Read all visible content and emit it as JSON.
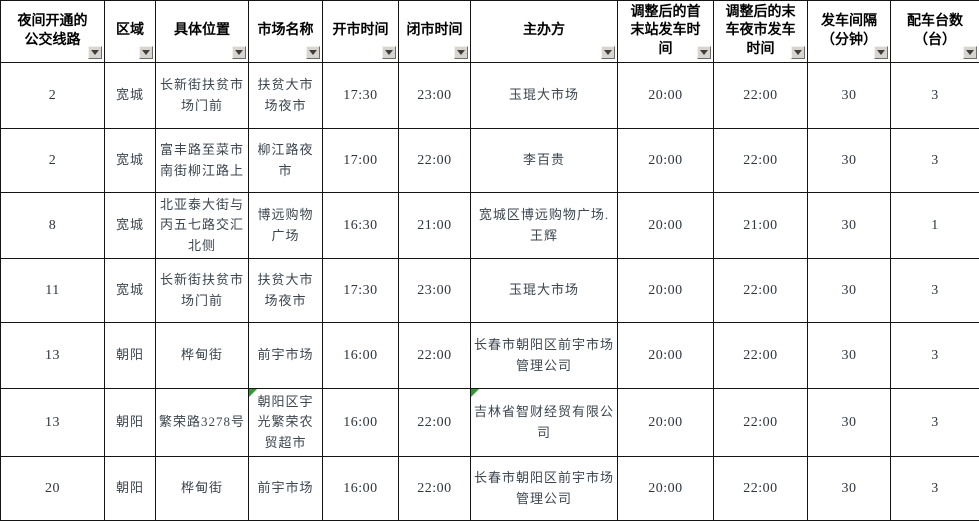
{
  "colors": {
    "grid_line": "#141414",
    "filter_button_bg": "#d8d5ce",
    "comment_flag_green": "#2e9d2e",
    "header_text": "#000000",
    "body_text": "#3c4650"
  },
  "table": {
    "headers": [
      "夜间开通的\n公交线路",
      "区域",
      "具体位置",
      "市场名称",
      "开市时间",
      "闭市时间",
      "主办方",
      "调整后的首\n末站发车时\n间",
      "调整后的末\n车夜市发车\n时间",
      "发车间隔\n（分钟）",
      "配车台数\n（台）"
    ],
    "rows": [
      {
        "cells": [
          "2",
          "宽城",
          "长新街扶贫市场门前",
          "扶贫大市场夜市",
          "17:30",
          "23:00",
          "玉琨大市场",
          "20:00",
          "22:00",
          "30",
          "3"
        ]
      },
      {
        "cells": [
          "2",
          "宽城",
          "富丰路至菜市南街柳江路上",
          "柳江路夜市",
          "17:00",
          "22:00",
          "李百贵",
          "20:00",
          "22:00",
          "30",
          "3"
        ]
      },
      {
        "cells": [
          "8",
          "宽城",
          "北亚泰大街与丙五七路交汇北侧",
          "博远购物广场",
          "16:30",
          "21:00",
          "宽城区博远购物广场.王辉",
          "20:00",
          "21:00",
          "30",
          "1"
        ]
      },
      {
        "cells": [
          "11",
          "宽城",
          "长新街扶贫市场门前",
          "扶贫大市场夜市",
          "17:30",
          "23:00",
          "玉琨大市场",
          "20:00",
          "22:00",
          "30",
          "3"
        ]
      },
      {
        "cells": [
          "13",
          "朝阳",
          "桦甸街",
          "前宇市场",
          "16:00",
          "22:00",
          "长春市朝阳区前宇市场管理公司",
          "20:00",
          "22:00",
          "30",
          "3"
        ]
      },
      {
        "cells": [
          "13",
          "朝阳",
          "繁荣路3278号",
          "朝阳区宇光繁荣农贸超市",
          "16:00",
          "22:00",
          "吉林省智财经贸有限公司",
          "20:00",
          "22:00",
          "30",
          "3"
        ]
      },
      {
        "cells": [
          "20",
          "朝阳",
          "桦甸街",
          "前宇市场",
          "16:00",
          "22:00",
          "长春市朝阳区前宇市场管理公司",
          "20:00",
          "22:00",
          "30",
          "3"
        ]
      }
    ],
    "comment_flags": [
      [
        5,
        3
      ],
      [
        5,
        6
      ]
    ]
  }
}
